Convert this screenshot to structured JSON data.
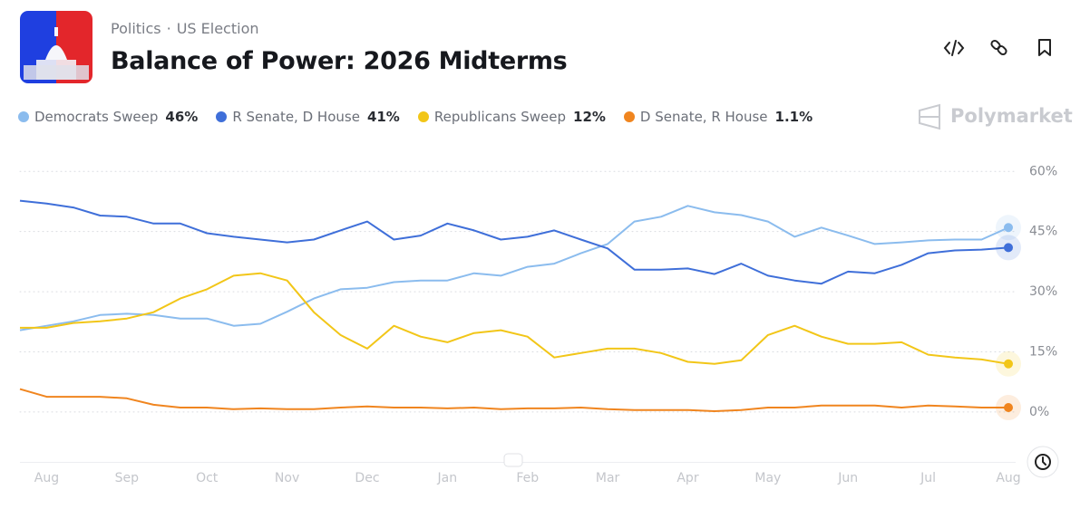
{
  "header": {
    "category": "Politics",
    "subcategory": "US Election",
    "title": "Balance of Power: 2026 Midterms"
  },
  "brand": "Polymarket",
  "chart_data": {
    "type": "line",
    "categories": [
      null,
      "Aug",
      null,
      null,
      "Sep",
      null,
      null,
      "Oct",
      null,
      null,
      "Nov",
      null,
      null,
      "Dec",
      null,
      null,
      "Jan",
      null,
      null,
      "Feb",
      null,
      null,
      "Mar",
      null,
      null,
      "Apr",
      null,
      null,
      "May",
      null,
      null,
      "Jun",
      null,
      null,
      "Jul",
      null,
      null,
      "Aug"
    ],
    "series": [
      {
        "name": "Democrats Sweep",
        "color": "#8bbcee",
        "last_value": 46,
        "last_value_label": "46%",
        "values": [
          20.4,
          21.5,
          22.6,
          24.2,
          24.5,
          24.2,
          23.3,
          23.3,
          21.5,
          22,
          25,
          28.3,
          30.6,
          31,
          32.4,
          32.8,
          32.8,
          34.6,
          34,
          36.2,
          37,
          39.6,
          41.9,
          47.5,
          48.7,
          51.4,
          49.8,
          49.1,
          47.5,
          43.7,
          46,
          44,
          41.9,
          42.3,
          42.8,
          43,
          43,
          46
        ]
      },
      {
        "name": "R Senate, D House",
        "color": "#3f6fd9",
        "last_value": 41,
        "last_value_label": "41%",
        "values": [
          52.7,
          52,
          51,
          49,
          48.7,
          47,
          47,
          44.6,
          43.7,
          43,
          42.3,
          43,
          45.3,
          47.5,
          43,
          44,
          47,
          45.3,
          43,
          43.7,
          45.3,
          43,
          40.8,
          35.5,
          35.5,
          35.8,
          34.4,
          37,
          34,
          32.8,
          32,
          35,
          34.6,
          36.7,
          39.6,
          40.3,
          40.5,
          41
        ]
      },
      {
        "name": "Republicans Sweep",
        "color": "#f2c618",
        "last_value": 12,
        "last_value_label": "12%",
        "values": [
          21,
          21,
          22.2,
          22.6,
          23.3,
          24.9,
          28.3,
          30.6,
          34,
          34.6,
          32.8,
          24.9,
          19.2,
          15.8,
          21.5,
          18.8,
          17.4,
          19.7,
          20.4,
          18.8,
          13.6,
          14.7,
          15.8,
          15.8,
          14.7,
          12.5,
          12,
          12.9,
          19.2,
          21.5,
          18.8,
          17,
          17,
          17.4,
          14.3,
          13.6,
          13.1,
          12
        ]
      },
      {
        "name": "D Senate, R House",
        "color": "#f0851f",
        "last_value": 1.1,
        "last_value_label": "1.1%",
        "values": [
          5.7,
          3.8,
          3.8,
          3.8,
          3.4,
          1.8,
          1.1,
          1.1,
          0.7,
          0.9,
          0.7,
          0.7,
          1.1,
          1.4,
          1.1,
          1.1,
          0.9,
          1.1,
          0.7,
          0.9,
          0.9,
          1.1,
          0.7,
          0.5,
          0.5,
          0.5,
          0.2,
          0.5,
          1.1,
          1.1,
          1.6,
          1.6,
          1.6,
          1.1,
          1.6,
          1.4,
          1.1,
          1.1
        ]
      }
    ],
    "ylim": [
      -12,
      63
    ],
    "yticks": [
      {
        "value": 0,
        "label": "0%"
      },
      {
        "value": 15,
        "label": "15%"
      },
      {
        "value": 30,
        "label": "30%"
      },
      {
        "value": 45,
        "label": "45%"
      },
      {
        "value": 60,
        "label": "60%"
      }
    ],
    "grid": true
  }
}
